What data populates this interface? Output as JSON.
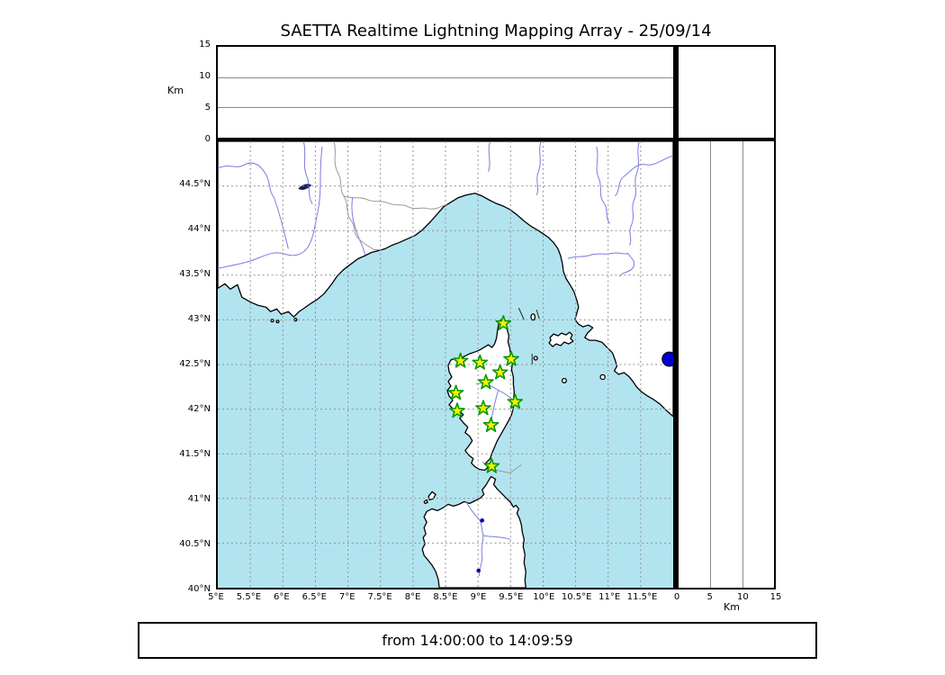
{
  "title": "SAETTA Realtime Lightning Mapping Array - 25/09/14",
  "footer": {
    "text": "from 14:00:00 to 14:09:59"
  },
  "colors": {
    "sea": "#b2e4f0",
    "land": "#ffffff",
    "coast": "#000000",
    "river": "#7b7bdf",
    "country_border": "#999999",
    "grid_dashed": "#909090",
    "panel_grid": "#8a8a8a",
    "station_fill": "#ffee00",
    "station_edge": "#009900",
    "source_fill": "#0000cc",
    "lake_fill": "#0000a8"
  },
  "chart_data": {
    "type": "scatter",
    "title": "SAETTA Realtime Lightning Mapping Array - 25/09/14",
    "time_window": "from 14:00:00 to 14:09:59",
    "panels": {
      "alt_vs_lon": {
        "position": "top",
        "ylabel": "Km",
        "ylim": [
          0,
          15
        ],
        "yticks": [
          0,
          5,
          10,
          15
        ],
        "grid": "solid horizontal at 5 and 10",
        "points": []
      },
      "map": {
        "xlim": [
          5,
          12
        ],
        "ylim": [
          40,
          45
        ],
        "grid": "dashed every 0.5 degree",
        "lon_ticks": [
          {
            "value": 5,
            "label": "5°E"
          },
          {
            "value": 5.5,
            "label": "5.5°E"
          },
          {
            "value": 6,
            "label": "6°E"
          },
          {
            "value": 6.5,
            "label": "6.5°E"
          },
          {
            "value": 7,
            "label": "7°E"
          },
          {
            "value": 7.5,
            "label": "7.5°E"
          },
          {
            "value": 8,
            "label": "8°E"
          },
          {
            "value": 8.5,
            "label": "8.5°E"
          },
          {
            "value": 9,
            "label": "9°E"
          },
          {
            "value": 9.5,
            "label": "9.5°E"
          },
          {
            "value": 10,
            "label": "10°E"
          },
          {
            "value": 10.5,
            "label": "10.5°E"
          },
          {
            "value": 11,
            "label": "11°E"
          },
          {
            "value": 11.5,
            "label": "11.5°E"
          }
        ],
        "lat_ticks": [
          {
            "value": 44.5,
            "label": "44.5°N"
          },
          {
            "value": 44,
            "label": "44°N"
          },
          {
            "value": 43.5,
            "label": "43.5°N"
          },
          {
            "value": 43,
            "label": "43°N"
          },
          {
            "value": 42.5,
            "label": "42.5°N"
          },
          {
            "value": 42,
            "label": "42°N"
          },
          {
            "value": 41.5,
            "label": "41.5°N"
          },
          {
            "value": 41,
            "label": "41°N"
          },
          {
            "value": 40.5,
            "label": "40.5°N"
          },
          {
            "value": 40,
            "label": "40°N"
          }
        ],
        "stations": [
          {
            "lon": 9.39,
            "lat": 42.96
          },
          {
            "lon": 8.73,
            "lat": 42.54
          },
          {
            "lon": 9.03,
            "lat": 42.52
          },
          {
            "lon": 9.51,
            "lat": 42.56
          },
          {
            "lon": 9.34,
            "lat": 42.41
          },
          {
            "lon": 9.12,
            "lat": 42.3
          },
          {
            "lon": 8.66,
            "lat": 42.18
          },
          {
            "lon": 9.57,
            "lat": 42.08
          },
          {
            "lon": 9.08,
            "lat": 42.01
          },
          {
            "lon": 8.68,
            "lat": 41.98
          },
          {
            "lon": 9.2,
            "lat": 41.82
          },
          {
            "lon": 9.21,
            "lat": 41.36
          }
        ],
        "station_marker": "star",
        "sources": [
          {
            "lon": 11.94,
            "lat": 42.56
          }
        ],
        "source_marker": "filled circle"
      },
      "alt_vs_lat": {
        "position": "right",
        "xlabel": "Km",
        "xlim": [
          0,
          15
        ],
        "xticks": [
          0,
          5,
          10,
          15
        ],
        "grid": "solid vertical at 5 and 10",
        "points": []
      }
    }
  }
}
